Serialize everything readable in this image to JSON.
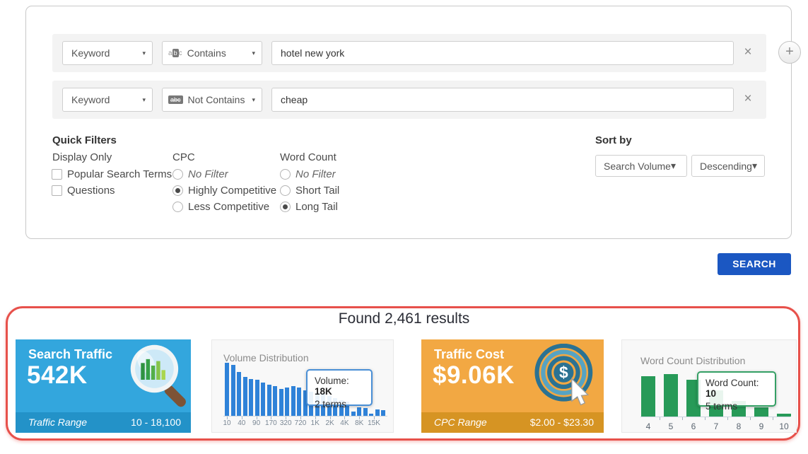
{
  "filter_panel": {
    "rows": [
      {
        "field": "Keyword",
        "operator": "Contains",
        "value": "hotel new york"
      },
      {
        "field": "Keyword",
        "operator": "Not Contains",
        "value": "cheap"
      }
    ],
    "quick_filters": {
      "title": "Quick Filters",
      "display_only": {
        "label": "Display Only",
        "options": [
          {
            "label": "Popular Search Terms",
            "checked": false
          },
          {
            "label": "Questions",
            "checked": false
          }
        ]
      },
      "cpc": {
        "label": "CPC",
        "options": [
          {
            "label": "No Filter",
            "selected": false
          },
          {
            "label": "Highly Competitive",
            "selected": true
          },
          {
            "label": "Less Competitive",
            "selected": false
          }
        ]
      },
      "word_count": {
        "label": "Word Count",
        "options": [
          {
            "label": "No Filter",
            "selected": false
          },
          {
            "label": "Short Tail",
            "selected": false
          },
          {
            "label": "Long Tail",
            "selected": true
          }
        ]
      }
    },
    "sort_by": {
      "title": "Sort by",
      "field": "Search Volume",
      "direction": "Descending"
    }
  },
  "search_button_label": "SEARCH",
  "icons": {
    "add": "+",
    "remove": "×",
    "caret": "▾",
    "operator_letters": "abc",
    "abc_a": "a",
    "abc_b": "b",
    "abc_c": "c",
    "dollar": "$"
  },
  "results": {
    "title": "Found 2,461 results",
    "search_traffic_card": {
      "title": "Search Traffic",
      "value": "542K",
      "footer_label": "Traffic Range",
      "footer_value": "10 - 18,100"
    },
    "traffic_cost_card": {
      "title": "Traffic Cost",
      "value": "$9.06K",
      "footer_label": "CPC Range",
      "footer_value": "$2.00 - $23.30"
    }
  },
  "chart_data": [
    {
      "type": "bar",
      "title": "Volume Distribution",
      "x_tick_labels": [
        "10",
        "40",
        "90",
        "170",
        "320",
        "720",
        "1K",
        "2K",
        "4K",
        "8K",
        "15K"
      ],
      "values": [
        75,
        72,
        62,
        55,
        52,
        51,
        47,
        44,
        42,
        38,
        40,
        42,
        40,
        36,
        34,
        33,
        31,
        28,
        25,
        22,
        20,
        6,
        12,
        11,
        3,
        9,
        8
      ],
      "bar_color": "#2f82d8",
      "xlabel": "",
      "ylabel": "",
      "legend": "none",
      "tooltip": {
        "label": "Volume:",
        "value": "18K",
        "sub": "2 terms"
      }
    },
    {
      "type": "bar",
      "title": "Word Count Distribution",
      "categories": [
        "4",
        "5",
        "6",
        "7",
        "8",
        "9",
        "10"
      ],
      "values": [
        57,
        60,
        52,
        37,
        22,
        13,
        4
      ],
      "bar_color": "#279a58",
      "xlabel": "",
      "ylabel": "",
      "legend": "none",
      "tooltip": {
        "label": "Word Count:",
        "value": "10",
        "sub": "5 terms"
      }
    }
  ],
  "colors": {
    "search_button": "#1b57c2",
    "traffic_card_bg": "#33a6dd",
    "traffic_card_footer_bg": "#2392c8",
    "cost_card_bg": "#f2a843",
    "cost_card_footer_bg": "#d69423",
    "results_highlight_border": "#e7514b",
    "volume_bar": "#2f82d8",
    "word_bar": "#279a58"
  }
}
